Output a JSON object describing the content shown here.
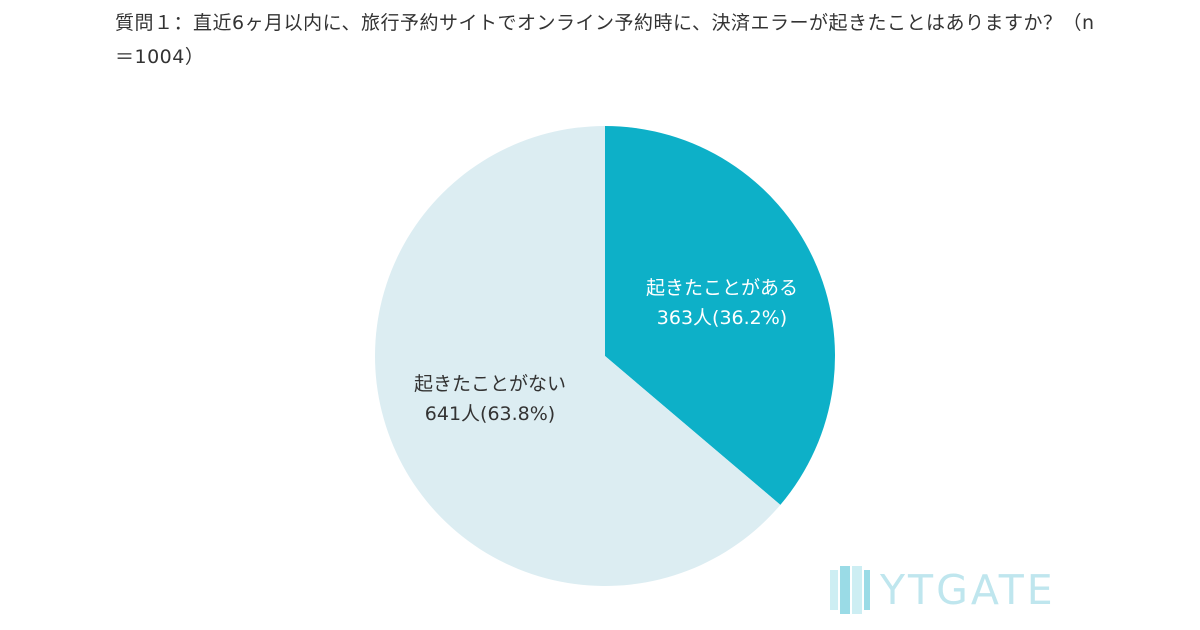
{
  "question": "質問１：直近6ヶ月以内に、旅行予約サイトでオンライン予約時に、決済エラーが起きたことはありますか？（n＝1004）",
  "chart_data": {
    "type": "pie",
    "title": "質問１：直近6ヶ月以内に、旅行予約サイトでオンライン予約時に、決済エラーが起きたことはありますか？（n＝1004）",
    "n": 1004,
    "slices": [
      {
        "label": "起きたことがある",
        "count": 363,
        "value": 36.2,
        "value_label": "363人(36.2%)",
        "color": "#0db0c8",
        "text_color": "#ffffff"
      },
      {
        "label": "起きたことがない",
        "count": 641,
        "value": 63.8,
        "value_label": "641人(63.8%)",
        "color": "#dcedf2",
        "text_color": "#333333"
      }
    ]
  },
  "logo": {
    "text": "YTGATE",
    "color": "#bfe6ee"
  }
}
